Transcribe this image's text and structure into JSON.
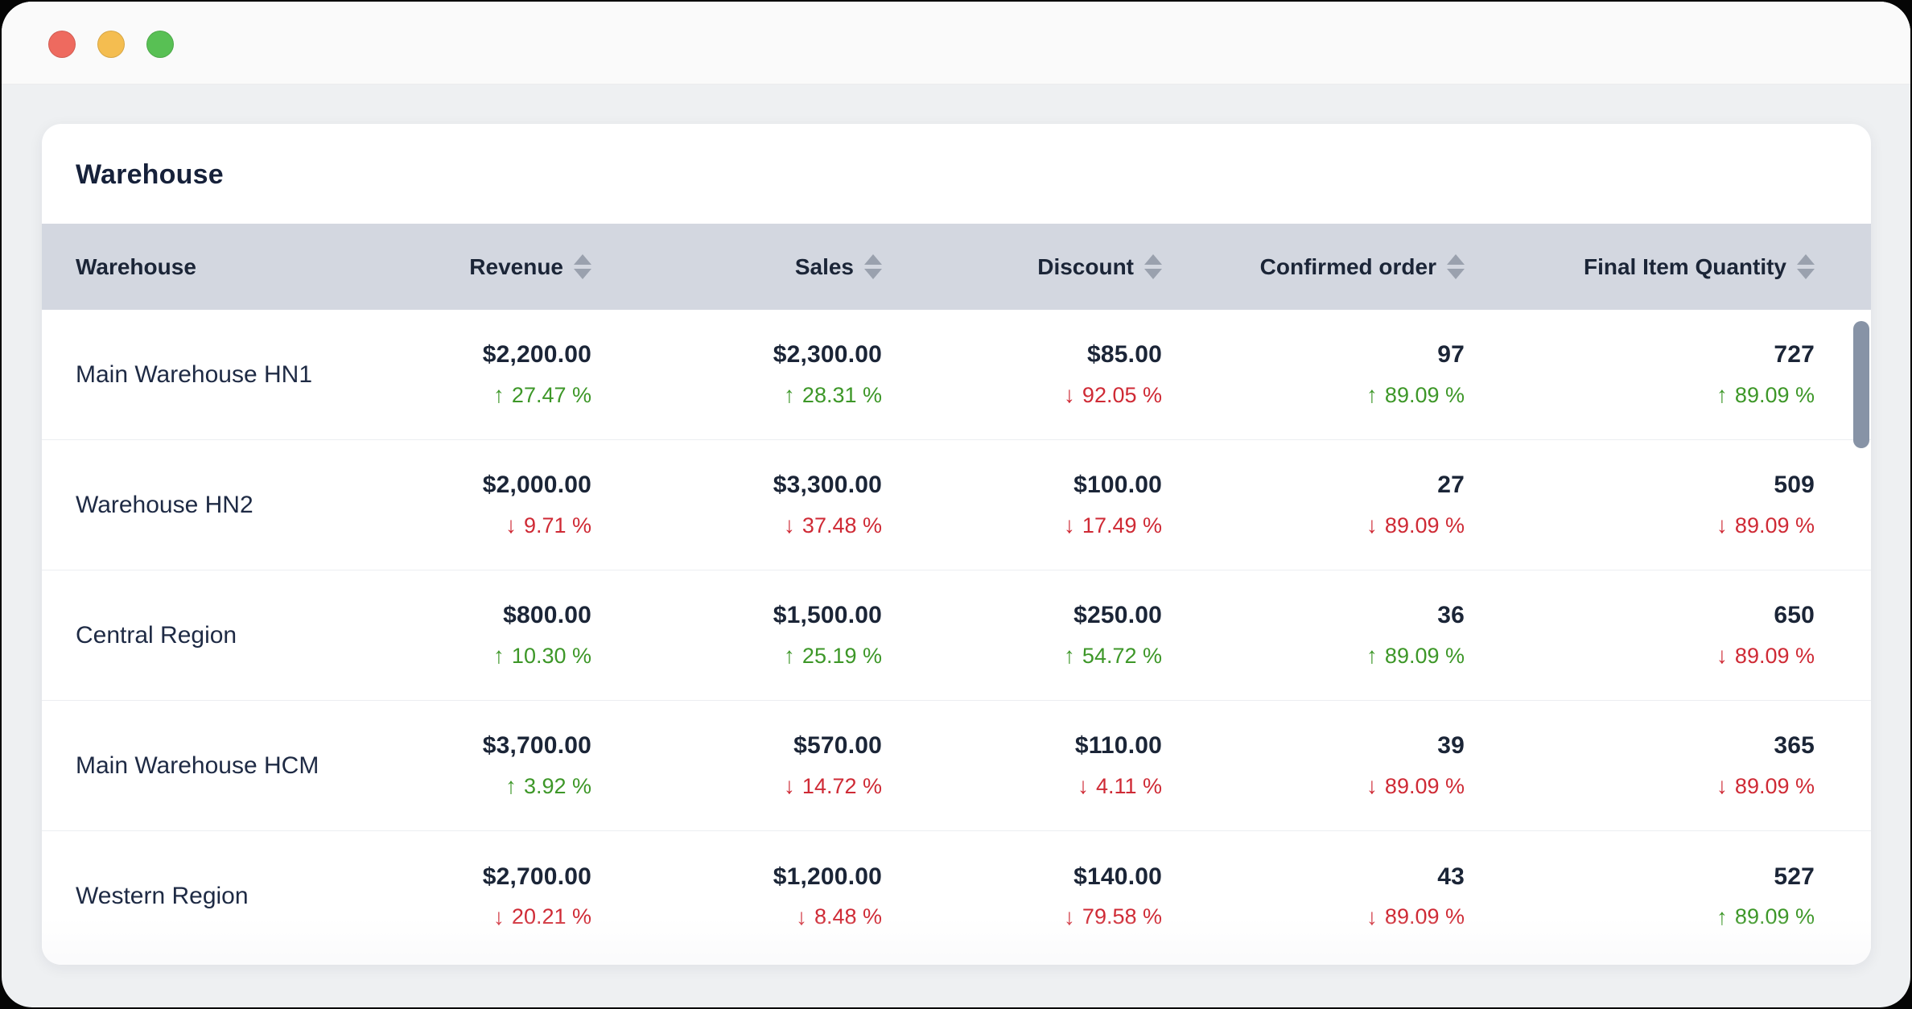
{
  "window": {
    "traffic_lights": [
      {
        "name": "close",
        "color": "#ee6a5f"
      },
      {
        "name": "minimize",
        "color": "#f4bd50"
      },
      {
        "name": "zoom",
        "color": "#58c054"
      }
    ]
  },
  "card": {
    "title": "Warehouse"
  },
  "icons": {
    "up_arrow": "↑",
    "down_arrow": "↓"
  },
  "colors": {
    "positive": "#3d9728",
    "negative": "#cf2a35",
    "header_bg": "#d3d7e0",
    "scrollbar": "#8793a6"
  },
  "table": {
    "columns": [
      {
        "label": "Warehouse",
        "sortable": false
      },
      {
        "label": "Revenue",
        "sortable": true
      },
      {
        "label": "Sales",
        "sortable": true
      },
      {
        "label": "Discount",
        "sortable": true
      },
      {
        "label": "Confirmed order",
        "sortable": true
      },
      {
        "label": "Final Item Quantity",
        "sortable": true
      }
    ],
    "rows": [
      {
        "name": "Main Warehouse HN1",
        "metrics": [
          {
            "value": "$2,200.00",
            "change": "27.47 %",
            "dir": "up"
          },
          {
            "value": "$2,300.00",
            "change": "28.31 %",
            "dir": "up"
          },
          {
            "value": "$85.00",
            "change": "92.05 %",
            "dir": "down"
          },
          {
            "value": "97",
            "change": "89.09 %",
            "dir": "up"
          },
          {
            "value": "727",
            "change": "89.09 %",
            "dir": "up"
          }
        ]
      },
      {
        "name": "Warehouse HN2",
        "metrics": [
          {
            "value": "$2,000.00",
            "change": "9.71 %",
            "dir": "down"
          },
          {
            "value": "$3,300.00",
            "change": "37.48 %",
            "dir": "down"
          },
          {
            "value": "$100.00",
            "change": "17.49 %",
            "dir": "down"
          },
          {
            "value": "27",
            "change": "89.09 %",
            "dir": "down"
          },
          {
            "value": "509",
            "change": "89.09 %",
            "dir": "down"
          }
        ]
      },
      {
        "name": "Central Region",
        "metrics": [
          {
            "value": "$800.00",
            "change": "10.30 %",
            "dir": "up"
          },
          {
            "value": "$1,500.00",
            "change": "25.19 %",
            "dir": "up"
          },
          {
            "value": "$250.00",
            "change": "54.72 %",
            "dir": "up"
          },
          {
            "value": "36",
            "change": "89.09 %",
            "dir": "up"
          },
          {
            "value": "650",
            "change": "89.09 %",
            "dir": "down"
          }
        ]
      },
      {
        "name": "Main Warehouse HCM",
        "metrics": [
          {
            "value": "$3,700.00",
            "change": "3.92 %",
            "dir": "up"
          },
          {
            "value": "$570.00",
            "change": "14.72 %",
            "dir": "down"
          },
          {
            "value": "$110.00",
            "change": "4.11 %",
            "dir": "down"
          },
          {
            "value": "39",
            "change": "89.09 %",
            "dir": "down"
          },
          {
            "value": "365",
            "change": "89.09 %",
            "dir": "down"
          }
        ]
      },
      {
        "name": "Western Region",
        "metrics": [
          {
            "value": "$2,700.00",
            "change": "20.21 %",
            "dir": "down"
          },
          {
            "value": "$1,200.00",
            "change": "8.48 %",
            "dir": "down"
          },
          {
            "value": "$140.00",
            "change": "79.58 %",
            "dir": "down"
          },
          {
            "value": "43",
            "change": "89.09 %",
            "dir": "down"
          },
          {
            "value": "527",
            "change": "89.09 %",
            "dir": "up"
          }
        ]
      }
    ]
  }
}
